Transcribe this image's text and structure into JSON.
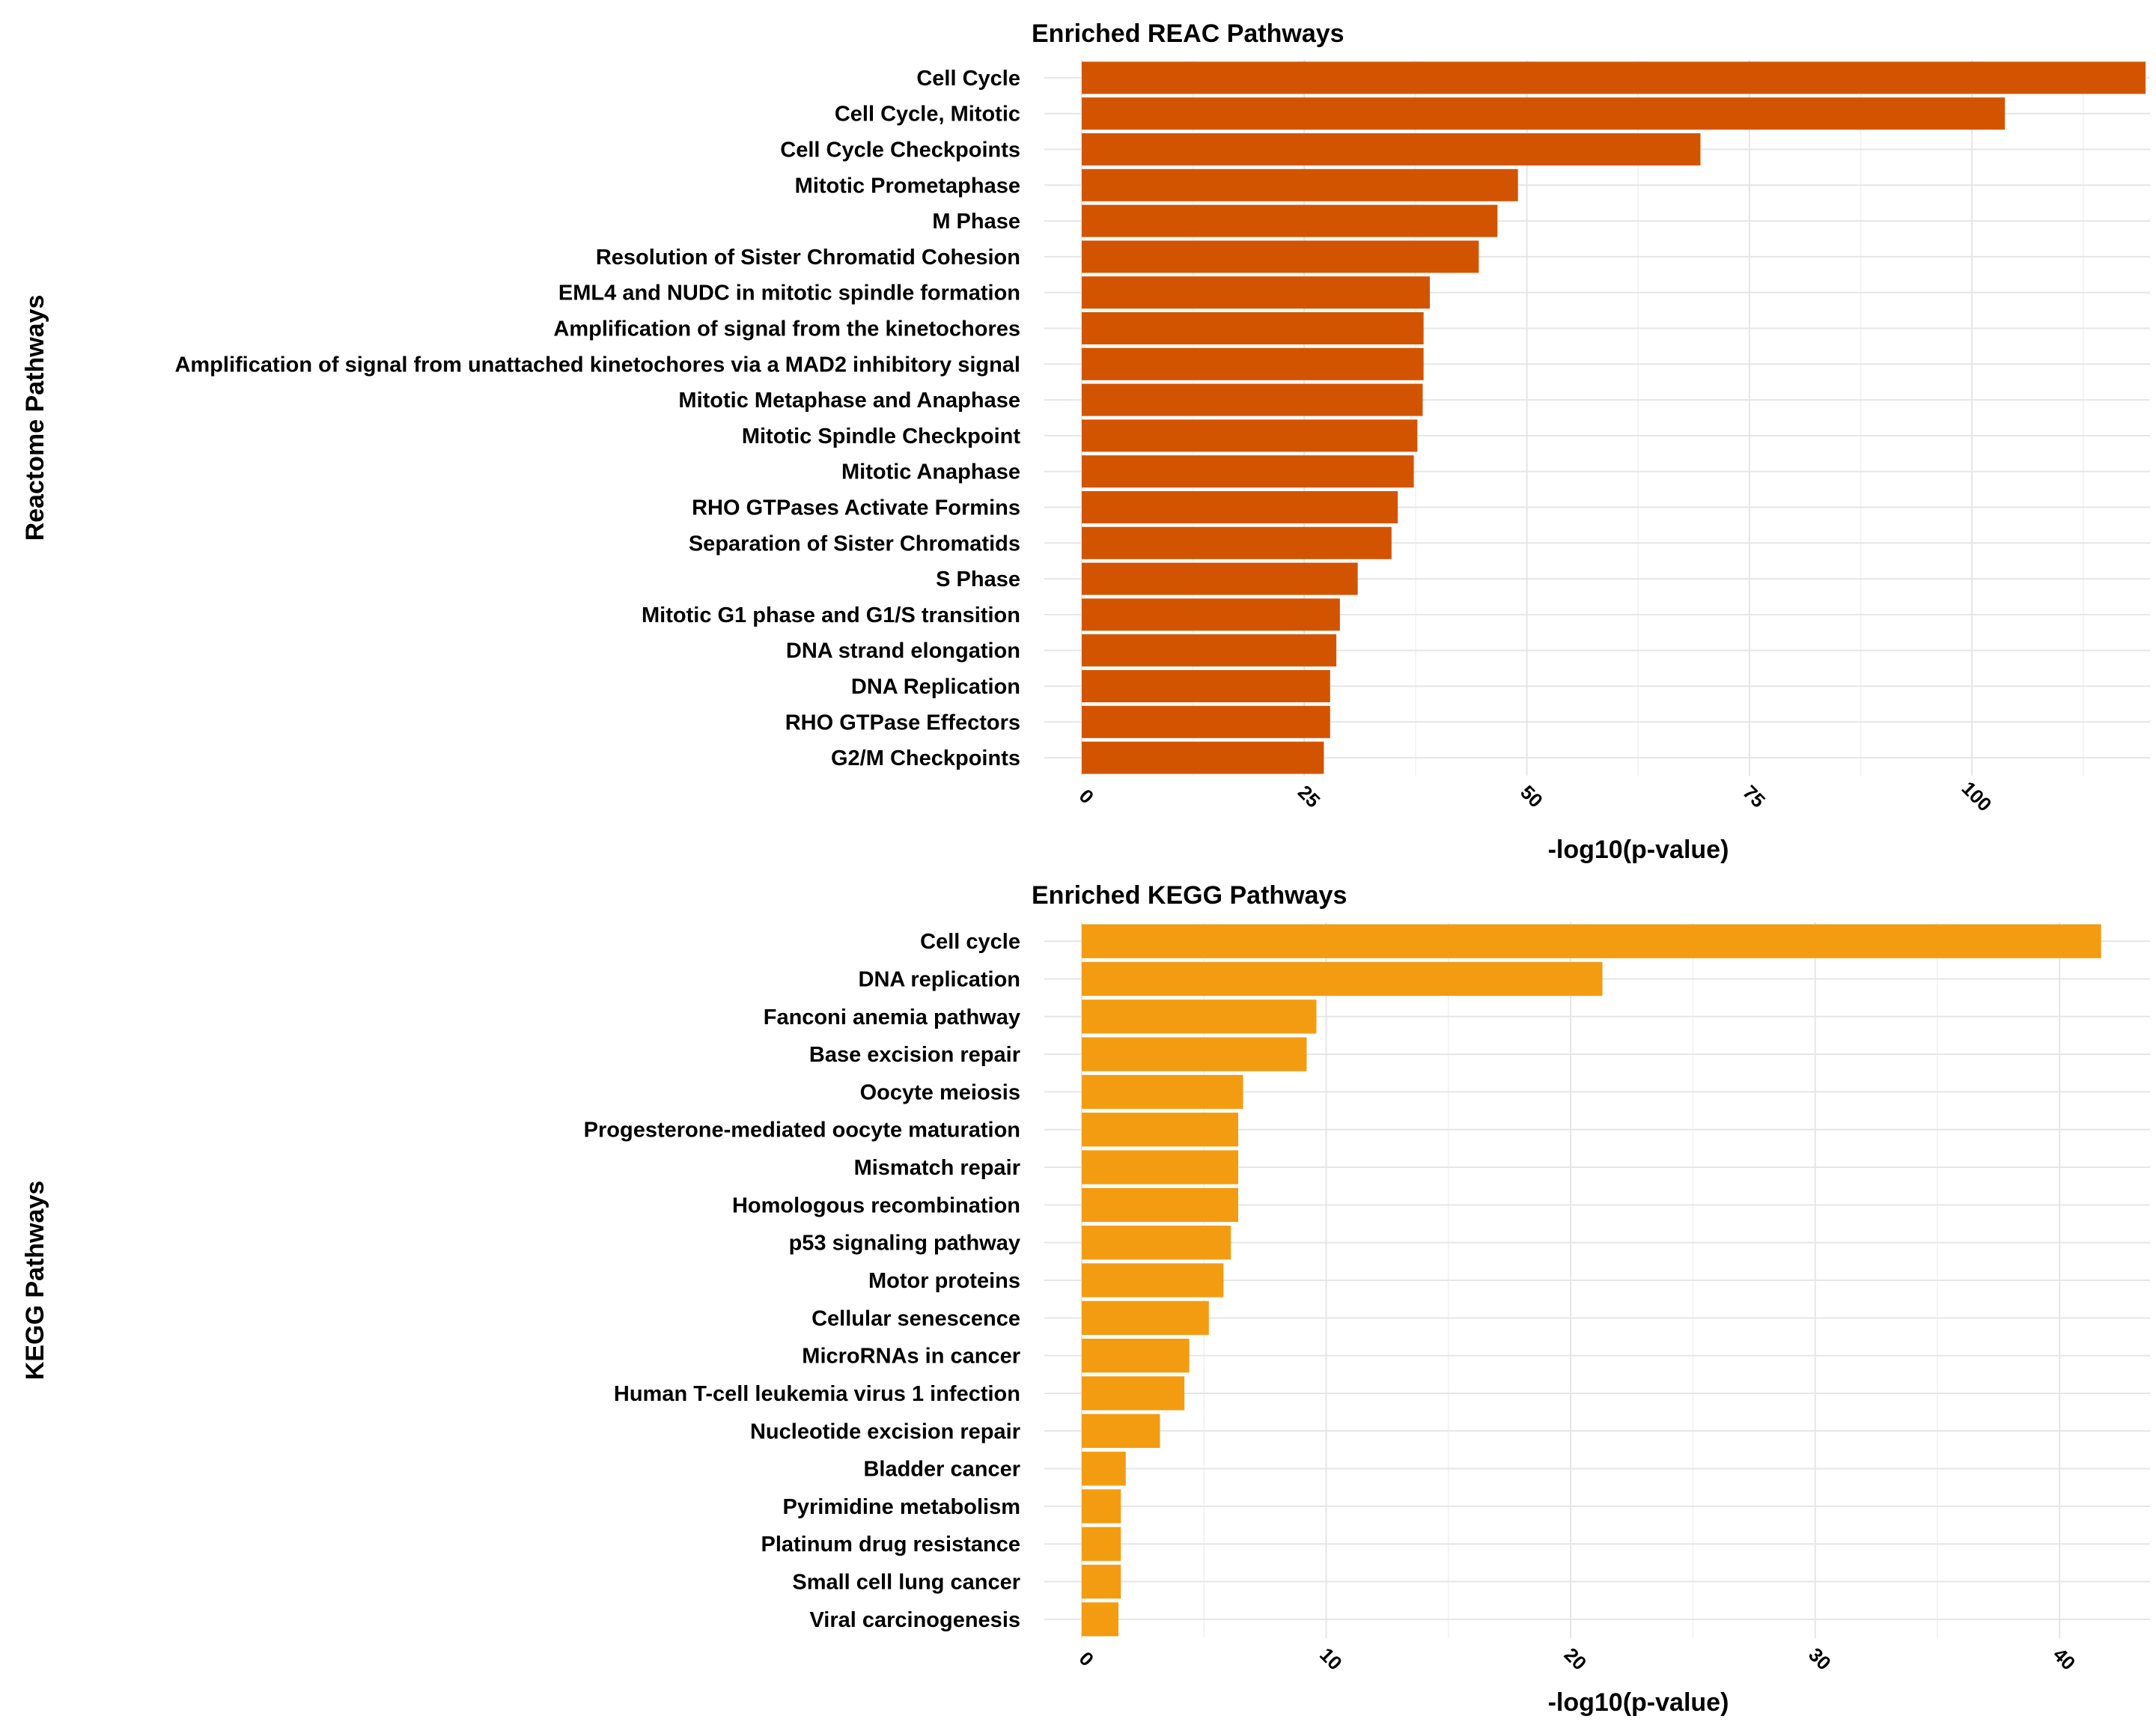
{
  "chart_data": [
    {
      "type": "bar",
      "orientation": "horizontal",
      "title": "Enriched REAC Pathways",
      "xlabel": "-log10(p-value)",
      "ylabel": "Reactome Pathways",
      "color": "#d35400",
      "xlim": [
        0,
        120
      ],
      "xticks": [
        0,
        25,
        50,
        75,
        100
      ],
      "grid": true,
      "categories": [
        "Cell Cycle",
        "Cell Cycle, Mitotic",
        "Cell Cycle Checkpoints",
        "Mitotic Prometaphase",
        "M Phase",
        "Resolution of Sister Chromatid Cohesion",
        "EML4 and NUDC in mitotic spindle formation",
        "Amplification of signal from the kinetochores",
        "Amplification  of signal from unattached  kinetochores via a MAD2  inhibitory signal",
        "Mitotic Metaphase and Anaphase",
        "Mitotic Spindle Checkpoint",
        "Mitotic Anaphase",
        "RHO GTPases Activate Formins",
        "Separation of Sister Chromatids",
        "S Phase",
        "Mitotic G1 phase and G1/S transition",
        "DNA strand elongation",
        "DNA Replication",
        "RHO GTPase Effectors",
        "G2/M Checkpoints"
      ],
      "values": [
        119.5,
        103.7,
        69.5,
        49.0,
        46.7,
        44.6,
        39.1,
        38.4,
        38.4,
        38.3,
        37.7,
        37.3,
        35.5,
        34.8,
        31.0,
        29.0,
        28.6,
        27.9,
        27.9,
        27.2
      ]
    },
    {
      "type": "bar",
      "orientation": "horizontal",
      "title": "Enriched KEGG Pathways",
      "xlabel": "-log10(p-value)",
      "ylabel": "KEGG Pathways",
      "color": "#f39c12",
      "xlim": [
        0,
        43.7
      ],
      "xticks": [
        0,
        10,
        20,
        30,
        40
      ],
      "grid": true,
      "categories": [
        "Cell cycle",
        "DNA replication",
        "Fanconi anemia pathway",
        "Base excision repair",
        "Oocyte meiosis",
        "Progesterone-mediated oocyte maturation",
        "Mismatch repair",
        "Homologous recombination",
        "p53 signaling pathway",
        "Motor proteins",
        "Cellular senescence",
        "MicroRNAs in cancer",
        "Human T-cell leukemia virus 1 infection",
        "Nucleotide excision repair",
        "Bladder cancer",
        "Pyrimidine metabolism",
        "Platinum drug resistance",
        "Small cell lung cancer",
        "Viral carcinogenesis"
      ],
      "values": [
        41.7,
        21.3,
        9.6,
        9.2,
        6.6,
        6.4,
        6.4,
        6.4,
        6.1,
        5.8,
        5.2,
        4.4,
        4.2,
        3.2,
        1.8,
        1.6,
        1.6,
        1.6,
        1.5
      ]
    }
  ]
}
